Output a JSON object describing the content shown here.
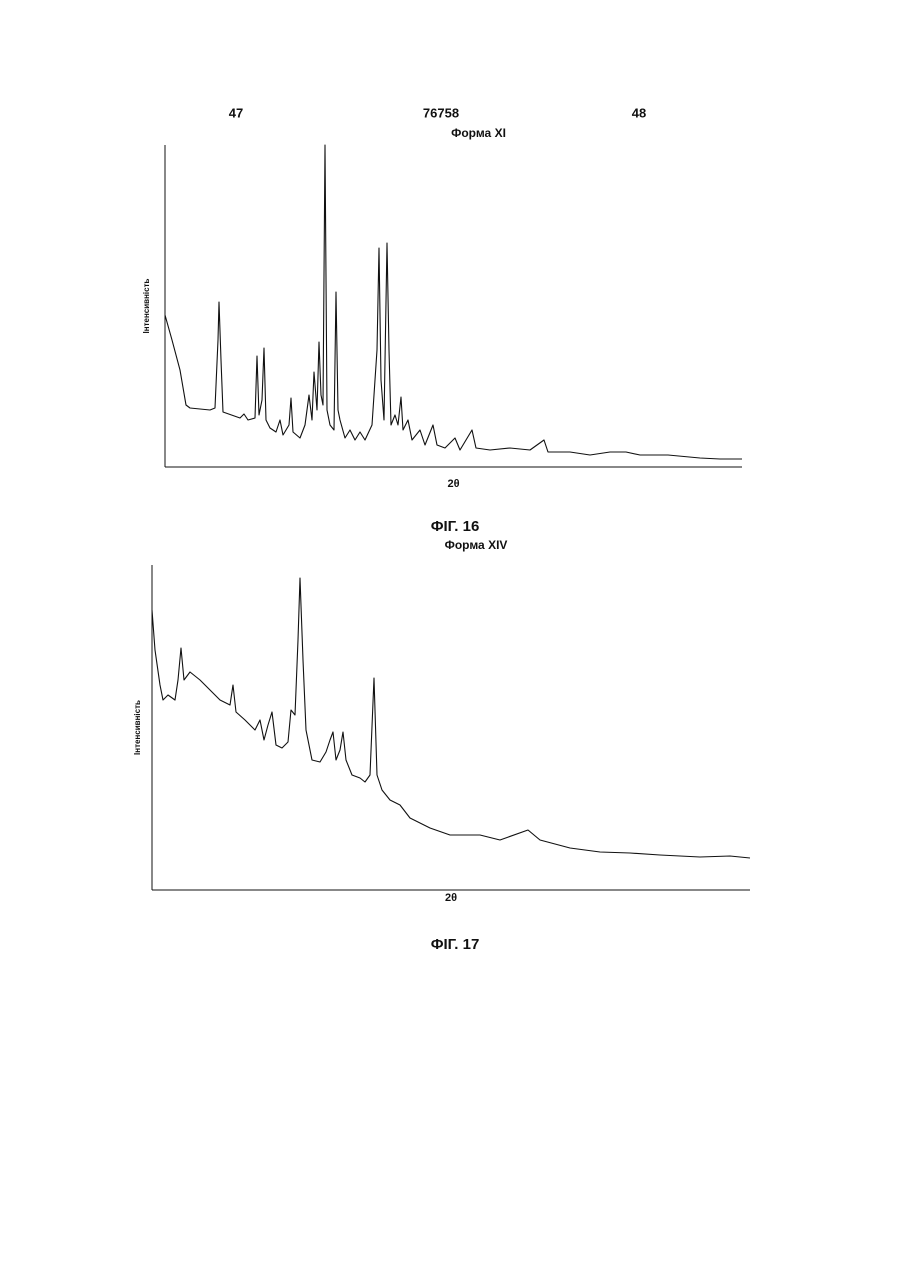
{
  "header": {
    "left": "47",
    "center": "76758",
    "right": "48"
  },
  "chart_data": [
    {
      "type": "line",
      "title": "Форма XI",
      "x_label": "2θ",
      "y_label": "Інтенсивність",
      "caption": "ФІГ. 16",
      "xlim": [
        0,
        577
      ],
      "ylim": [
        0,
        322
      ],
      "color": "#111",
      "x": [
        0,
        7,
        15,
        21,
        25,
        45,
        50,
        53,
        54,
        56,
        58,
        75,
        79,
        83,
        90,
        92,
        94,
        97,
        99,
        101,
        105,
        111,
        115,
        118,
        124,
        126,
        128,
        135,
        140,
        144,
        147,
        149,
        152,
        154,
        156,
        158,
        160,
        162,
        165,
        169,
        171,
        173,
        175,
        180,
        185,
        190,
        195,
        200,
        207,
        212,
        214,
        216,
        219,
        222,
        224,
        226,
        230,
        233,
        236,
        238,
        243,
        247,
        255,
        260,
        268,
        272,
        280,
        290,
        295,
        307,
        311,
        325,
        345,
        365,
        379,
        383,
        405,
        425,
        445,
        461,
        475,
        503,
        535,
        555,
        577
      ],
      "values": [
        152,
        127,
        97,
        62,
        59,
        57,
        59,
        127,
        165,
        107,
        55,
        49,
        53,
        47,
        49,
        111,
        52,
        67,
        119,
        47,
        39,
        35,
        47,
        32,
        42,
        69,
        35,
        29,
        42,
        72,
        47,
        95,
        57,
        125,
        72,
        62,
        322,
        57,
        42,
        37,
        175,
        57,
        47,
        29,
        37,
        27,
        35,
        27,
        42,
        117,
        219,
        87,
        47,
        224,
        117,
        42,
        52,
        42,
        70,
        37,
        47,
        27,
        37,
        22,
        42,
        22,
        19,
        29,
        17,
        37,
        19,
        17,
        19,
        17,
        27,
        15,
        15,
        12,
        15,
        15,
        12,
        12,
        9,
        8,
        8
      ]
    }
  ],
  "second_chart": {
    "type": "line",
    "title": "Форма XIV",
    "x_label": "2θ",
    "y_label": "Інтенсивність",
    "caption": "ФІГ. 17",
    "xlim": [
      0,
      598
    ],
    "ylim": [
      0,
      325
    ],
    "color": "#111",
    "x": [
      0,
      3,
      8,
      11,
      16,
      23,
      26,
      29,
      32,
      38,
      48,
      58,
      68,
      78,
      81,
      84,
      93,
      103,
      108,
      112,
      116,
      120,
      124,
      130,
      136,
      139,
      143,
      146,
      148,
      151,
      154,
      160,
      168,
      174,
      178,
      181,
      184,
      188,
      191,
      194,
      200,
      208,
      213,
      218,
      222,
      225,
      230,
      238,
      248,
      258,
      278,
      298,
      328,
      348,
      376,
      388,
      418,
      448,
      478,
      508,
      548,
      578,
      598
    ],
    "values": [
      280,
      240,
      205,
      190,
      195,
      190,
      210,
      242,
      210,
      218,
      210,
      200,
      190,
      185,
      205,
      178,
      170,
      160,
      170,
      150,
      165,
      178,
      145,
      142,
      148,
      180,
      175,
      250,
      312,
      230,
      160,
      130,
      128,
      138,
      150,
      158,
      130,
      140,
      158,
      130,
      115,
      112,
      108,
      115,
      212,
      115,
      100,
      90,
      85,
      72,
      62,
      55,
      55,
      50,
      60,
      50,
      42,
      38,
      37,
      35,
      33,
      34,
      32
    ]
  }
}
